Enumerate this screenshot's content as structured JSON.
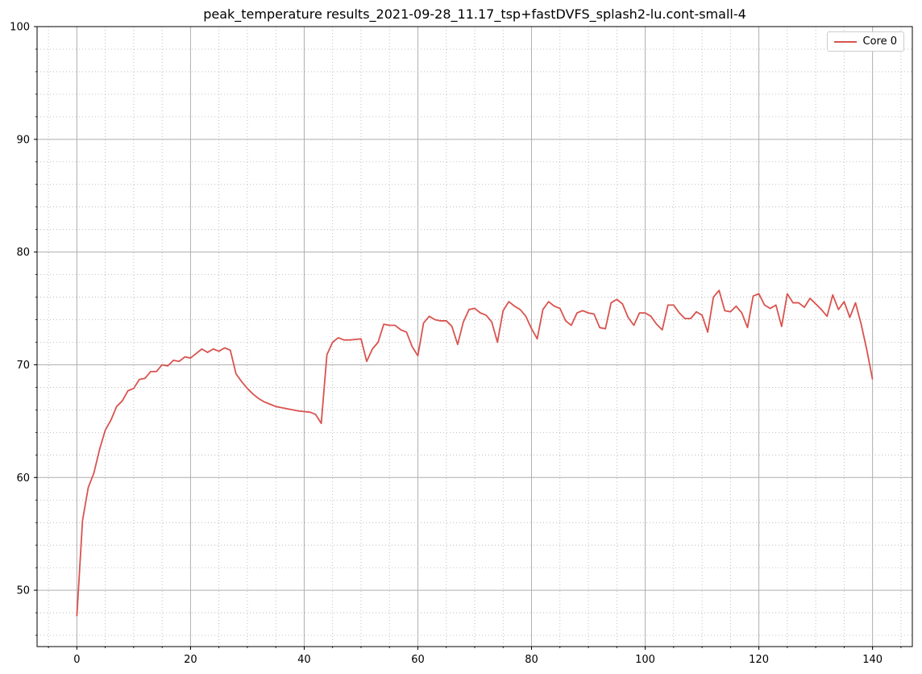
{
  "chart_data": {
    "type": "line",
    "title": "peak_temperature results_2021-09-28_11.17_tsp+fastDVFS_splash2-lu.cont-small-4",
    "xlabel": "",
    "ylabel": "",
    "xlim": [
      -7,
      147
    ],
    "ylim": [
      45,
      100
    ],
    "x_major_ticks": [
      0,
      20,
      40,
      60,
      80,
      100,
      120,
      140
    ],
    "x_minor_step": 5,
    "y_major_ticks": [
      50,
      60,
      70,
      80,
      90,
      100
    ],
    "y_minor_step": 2,
    "grid": true,
    "legend_position": "top-right",
    "series": [
      {
        "name": "Core 0",
        "color": "#d9534f",
        "x": [
          0,
          1,
          2,
          3,
          4,
          5,
          6,
          7,
          8,
          9,
          10,
          11,
          12,
          13,
          14,
          15,
          16,
          17,
          18,
          19,
          20,
          21,
          22,
          23,
          24,
          25,
          26,
          27,
          28,
          29,
          30,
          31,
          32,
          33,
          34,
          35,
          36,
          37,
          38,
          39,
          40,
          41,
          42,
          43,
          44,
          45,
          46,
          47,
          48,
          49,
          50,
          51,
          52,
          53,
          54,
          55,
          56,
          57,
          58,
          59,
          60,
          61,
          62,
          63,
          64,
          65,
          66,
          67,
          68,
          69,
          70,
          71,
          72,
          73,
          74,
          75,
          76,
          77,
          78,
          79,
          80,
          81,
          82,
          83,
          84,
          85,
          86,
          87,
          88,
          89,
          90,
          91,
          92,
          93,
          94,
          95,
          96,
          97,
          98,
          99,
          100,
          101,
          102,
          103,
          104,
          105,
          106,
          107,
          108,
          109,
          110,
          111,
          112,
          113,
          114,
          115,
          116,
          117,
          118,
          119,
          120,
          121,
          122,
          123,
          124,
          125,
          126,
          127,
          128,
          129,
          130,
          131,
          132,
          133,
          134,
          135,
          136,
          137,
          138,
          139,
          140
        ],
        "values": [
          47.7,
          56.2,
          59.1,
          60.4,
          62.5,
          64.2,
          65.1,
          66.3,
          66.8,
          67.7,
          67.9,
          68.7,
          68.8,
          69.4,
          69.4,
          70.0,
          69.9,
          70.4,
          70.3,
          70.7,
          70.6,
          71.0,
          71.4,
          71.1,
          71.4,
          71.2,
          71.5,
          71.3,
          69.2,
          68.5,
          67.9,
          67.4,
          67.0,
          66.7,
          66.5,
          66.3,
          66.2,
          66.1,
          66.0,
          65.9,
          65.85,
          65.8,
          65.6,
          64.8,
          70.9,
          72.0,
          72.4,
          72.2,
          72.2,
          72.25,
          72.3,
          70.3,
          71.4,
          72.0,
          73.6,
          73.5,
          73.5,
          73.1,
          72.9,
          71.6,
          70.8,
          73.7,
          74.3,
          74.0,
          73.9,
          73.9,
          73.4,
          71.8,
          73.8,
          74.9,
          75.0,
          74.6,
          74.4,
          73.8,
          72.0,
          74.8,
          75.6,
          75.2,
          74.9,
          74.3,
          73.2,
          72.3,
          74.9,
          75.6,
          75.2,
          75.0,
          73.9,
          73.5,
          74.6,
          74.8,
          74.6,
          74.5,
          73.3,
          73.2,
          75.5,
          75.8,
          75.4,
          74.2,
          73.5,
          74.6,
          74.6,
          74.3,
          73.6,
          73.1,
          75.3,
          75.3,
          74.6,
          74.1,
          74.1,
          74.7,
          74.4,
          72.9,
          76.0,
          76.6,
          74.8,
          74.7,
          75.2,
          74.6,
          73.3,
          76.1,
          76.3,
          75.3,
          75.0,
          75.3,
          73.4,
          76.3,
          75.5,
          75.5,
          75.1,
          75.9,
          75.4,
          74.9,
          74.3,
          76.2,
          74.9,
          75.6,
          74.2,
          75.5,
          73.6,
          71.3,
          68.7
        ]
      }
    ]
  }
}
